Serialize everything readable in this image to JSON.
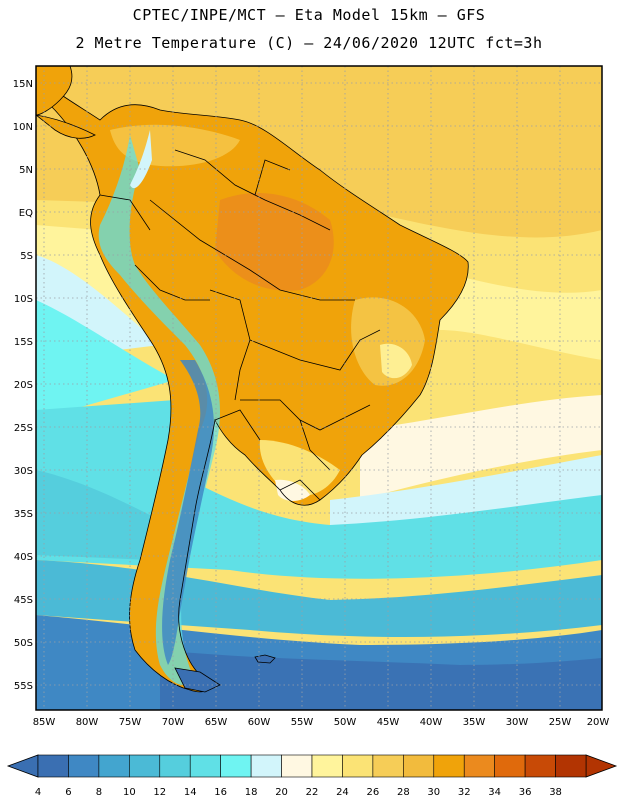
{
  "header": {
    "line1": "CPTEC/INPE/MCT –  Eta Model 15km – GFS",
    "line2": "2 Metre Temperature (C) – 24/06/2020 12UTC fct=3h"
  },
  "map": {
    "lat_labels": [
      "15N",
      "10N",
      "5N",
      "EQ",
      "5S",
      "10S",
      "15S",
      "20S",
      "25S",
      "30S",
      "35S",
      "40S",
      "45S",
      "50S",
      "55S"
    ],
    "lon_labels": [
      "85W",
      "80W",
      "75W",
      "70W",
      "65W",
      "60W",
      "55W",
      "50W",
      "45W",
      "40W",
      "35W",
      "30W",
      "25W",
      "20W"
    ]
  },
  "colorbar": {
    "ticks": [
      "4",
      "6",
      "8",
      "10",
      "12",
      "14",
      "16",
      "18",
      "20",
      "22",
      "24",
      "26",
      "28",
      "30",
      "32",
      "34",
      "36",
      "38"
    ],
    "colors": [
      "#3a6fb2",
      "#3f88c4",
      "#43a5cf",
      "#4bbad6",
      "#55cedd",
      "#60e0e6",
      "#6ff4f2",
      "#d2f5fb",
      "#fff8e2",
      "#fff49c",
      "#fbe375",
      "#f6cd57",
      "#f2bb3d",
      "#f0a30a",
      "#eb8a1e",
      "#e06a0c",
      "#c84a06",
      "#b23402"
    ],
    "left_color": "#3a6fb2",
    "right_color": "#b23402"
  },
  "colors": {
    "background": "#ffffff",
    "border": "#000000",
    "grid": "#9aa0a6"
  }
}
